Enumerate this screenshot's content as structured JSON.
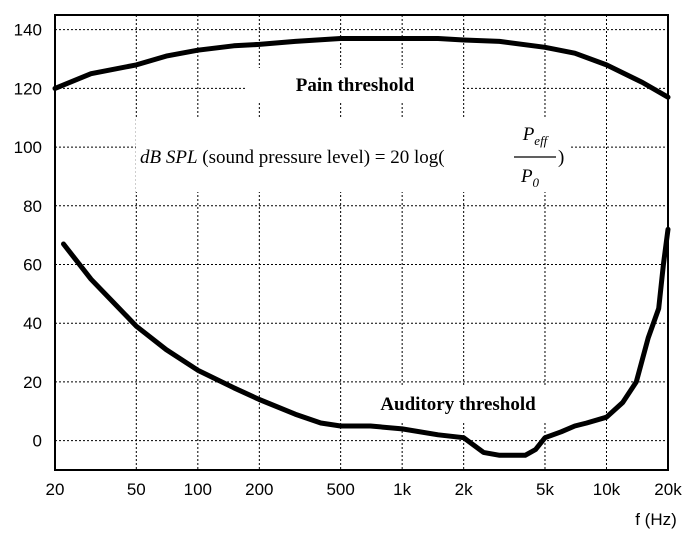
{
  "chart_data": {
    "type": "line",
    "xlabel": "f (Hz)",
    "ylabel": "",
    "xscale": "log",
    "xlim": [
      20,
      20000
    ],
    "ylim": [
      -10,
      145
    ],
    "grid": true,
    "x_ticks": [
      {
        "value": 20,
        "label": "20"
      },
      {
        "value": 50,
        "label": "50"
      },
      {
        "value": 100,
        "label": "100"
      },
      {
        "value": 200,
        "label": "200"
      },
      {
        "value": 500,
        "label": "500"
      },
      {
        "value": 1000,
        "label": "1k"
      },
      {
        "value": 2000,
        "label": "2k"
      },
      {
        "value": 5000,
        "label": "5k"
      },
      {
        "value": 10000,
        "label": "10k"
      },
      {
        "value": 20000,
        "label": "20k"
      }
    ],
    "y_ticks": [
      0,
      20,
      40,
      60,
      80,
      100,
      120,
      140
    ],
    "series": [
      {
        "name": "Pain threshold",
        "x": [
          20,
          30,
          50,
          70,
          100,
          150,
          200,
          300,
          500,
          700,
          1000,
          1500,
          2000,
          3000,
          5000,
          7000,
          10000,
          15000,
          20000
        ],
        "y": [
          120,
          125,
          128,
          131,
          133,
          134.5,
          135,
          136,
          137,
          137,
          137,
          137,
          136.5,
          136,
          134,
          132,
          128,
          122,
          117
        ]
      },
      {
        "name": "Auditory threshold",
        "x": [
          22,
          30,
          40,
          50,
          70,
          100,
          150,
          200,
          300,
          400,
          500,
          700,
          1000,
          1500,
          2000,
          2500,
          3000,
          3500,
          4000,
          4500,
          5000,
          6000,
          7000,
          8000,
          10000,
          12000,
          14000,
          16000,
          18000,
          19000,
          20000
        ],
        "y": [
          67,
          55,
          46,
          39,
          31,
          24,
          18,
          14,
          9,
          6,
          5,
          5,
          4,
          2,
          1,
          -4,
          -5,
          -5,
          -5,
          -3,
          1,
          3,
          5,
          6,
          8,
          13,
          20,
          35,
          45,
          60,
          72
        ]
      }
    ],
    "annotations": {
      "pain_label": "Pain threshold",
      "auditory_label": "Auditory threshold",
      "formula_lhs": "dB SPL",
      "formula_text": " (sound pressure level) = 20 log(",
      "formula_num": "P",
      "formula_num_sub": "eff",
      "formula_den": "P",
      "formula_den_sub": "0",
      "formula_close": ")"
    }
  }
}
